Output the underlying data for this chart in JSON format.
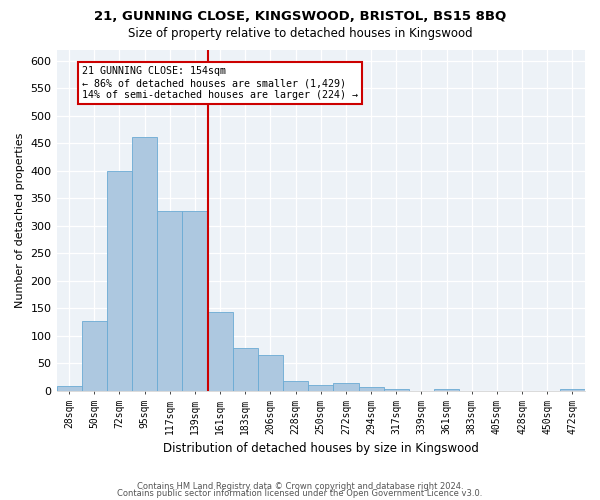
{
  "title": "21, GUNNING CLOSE, KINGSWOOD, BRISTOL, BS15 8BQ",
  "subtitle": "Size of property relative to detached houses in Kingswood",
  "xlabel": "Distribution of detached houses by size in Kingswood",
  "ylabel": "Number of detached properties",
  "bar_color": "#adc8e0",
  "bar_edge_color": "#6aaad4",
  "bin_labels": [
    "28sqm",
    "50sqm",
    "72sqm",
    "95sqm",
    "117sqm",
    "139sqm",
    "161sqm",
    "183sqm",
    "206sqm",
    "228sqm",
    "250sqm",
    "272sqm",
    "294sqm",
    "317sqm",
    "339sqm",
    "361sqm",
    "383sqm",
    "405sqm",
    "428sqm",
    "450sqm",
    "472sqm"
  ],
  "bar_values": [
    8,
    127,
    400,
    462,
    327,
    327,
    143,
    78,
    65,
    18,
    10,
    14,
    6,
    3,
    0,
    4,
    0,
    0,
    0,
    0,
    4
  ],
  "ylim": [
    0,
    620
  ],
  "yticks": [
    0,
    50,
    100,
    150,
    200,
    250,
    300,
    350,
    400,
    450,
    500,
    550,
    600
  ],
  "vline_color": "#cc0000",
  "annotation_text": "21 GUNNING CLOSE: 154sqm\n← 86% of detached houses are smaller (1,429)\n14% of semi-detached houses are larger (224) →",
  "annotation_box_color": "#ffffff",
  "annotation_box_edge_color": "#cc0000",
  "bg_color": "#edf2f7",
  "footer1": "Contains HM Land Registry data © Crown copyright and database right 2024.",
  "footer2": "Contains public sector information licensed under the Open Government Licence v3.0."
}
